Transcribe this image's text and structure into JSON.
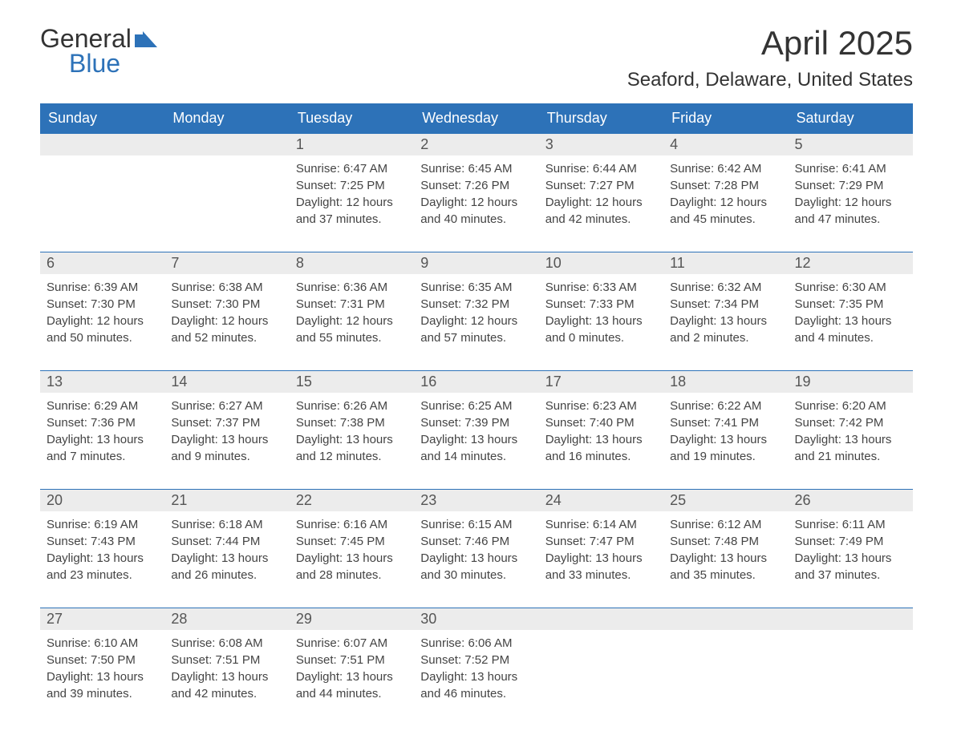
{
  "brand": {
    "line1": "General",
    "line2": "Blue",
    "icon_color": "#2d72b8"
  },
  "header": {
    "month_title": "April 2025",
    "location": "Seaford, Delaware, United States"
  },
  "colors": {
    "header_bg": "#2d72b8",
    "header_text": "#ffffff",
    "daynum_bg": "#ececec",
    "text": "#333333",
    "row_border": "#2d72b8"
  },
  "dayNames": [
    "Sunday",
    "Monday",
    "Tuesday",
    "Wednesday",
    "Thursday",
    "Friday",
    "Saturday"
  ],
  "labels": {
    "sunrise": "Sunrise:",
    "sunset": "Sunset:",
    "daylight": "Daylight:"
  },
  "weeks": [
    [
      null,
      null,
      {
        "n": "1",
        "sunrise": "6:47 AM",
        "sunset": "7:25 PM",
        "daylight": "12 hours and 37 minutes."
      },
      {
        "n": "2",
        "sunrise": "6:45 AM",
        "sunset": "7:26 PM",
        "daylight": "12 hours and 40 minutes."
      },
      {
        "n": "3",
        "sunrise": "6:44 AM",
        "sunset": "7:27 PM",
        "daylight": "12 hours and 42 minutes."
      },
      {
        "n": "4",
        "sunrise": "6:42 AM",
        "sunset": "7:28 PM",
        "daylight": "12 hours and 45 minutes."
      },
      {
        "n": "5",
        "sunrise": "6:41 AM",
        "sunset": "7:29 PM",
        "daylight": "12 hours and 47 minutes."
      }
    ],
    [
      {
        "n": "6",
        "sunrise": "6:39 AM",
        "sunset": "7:30 PM",
        "daylight": "12 hours and 50 minutes."
      },
      {
        "n": "7",
        "sunrise": "6:38 AM",
        "sunset": "7:30 PM",
        "daylight": "12 hours and 52 minutes."
      },
      {
        "n": "8",
        "sunrise": "6:36 AM",
        "sunset": "7:31 PM",
        "daylight": "12 hours and 55 minutes."
      },
      {
        "n": "9",
        "sunrise": "6:35 AM",
        "sunset": "7:32 PM",
        "daylight": "12 hours and 57 minutes."
      },
      {
        "n": "10",
        "sunrise": "6:33 AM",
        "sunset": "7:33 PM",
        "daylight": "13 hours and 0 minutes."
      },
      {
        "n": "11",
        "sunrise": "6:32 AM",
        "sunset": "7:34 PM",
        "daylight": "13 hours and 2 minutes."
      },
      {
        "n": "12",
        "sunrise": "6:30 AM",
        "sunset": "7:35 PM",
        "daylight": "13 hours and 4 minutes."
      }
    ],
    [
      {
        "n": "13",
        "sunrise": "6:29 AM",
        "sunset": "7:36 PM",
        "daylight": "13 hours and 7 minutes."
      },
      {
        "n": "14",
        "sunrise": "6:27 AM",
        "sunset": "7:37 PM",
        "daylight": "13 hours and 9 minutes."
      },
      {
        "n": "15",
        "sunrise": "6:26 AM",
        "sunset": "7:38 PM",
        "daylight": "13 hours and 12 minutes."
      },
      {
        "n": "16",
        "sunrise": "6:25 AM",
        "sunset": "7:39 PM",
        "daylight": "13 hours and 14 minutes."
      },
      {
        "n": "17",
        "sunrise": "6:23 AM",
        "sunset": "7:40 PM",
        "daylight": "13 hours and 16 minutes."
      },
      {
        "n": "18",
        "sunrise": "6:22 AM",
        "sunset": "7:41 PM",
        "daylight": "13 hours and 19 minutes."
      },
      {
        "n": "19",
        "sunrise": "6:20 AM",
        "sunset": "7:42 PM",
        "daylight": "13 hours and 21 minutes."
      }
    ],
    [
      {
        "n": "20",
        "sunrise": "6:19 AM",
        "sunset": "7:43 PM",
        "daylight": "13 hours and 23 minutes."
      },
      {
        "n": "21",
        "sunrise": "6:18 AM",
        "sunset": "7:44 PM",
        "daylight": "13 hours and 26 minutes."
      },
      {
        "n": "22",
        "sunrise": "6:16 AM",
        "sunset": "7:45 PM",
        "daylight": "13 hours and 28 minutes."
      },
      {
        "n": "23",
        "sunrise": "6:15 AM",
        "sunset": "7:46 PM",
        "daylight": "13 hours and 30 minutes."
      },
      {
        "n": "24",
        "sunrise": "6:14 AM",
        "sunset": "7:47 PM",
        "daylight": "13 hours and 33 minutes."
      },
      {
        "n": "25",
        "sunrise": "6:12 AM",
        "sunset": "7:48 PM",
        "daylight": "13 hours and 35 minutes."
      },
      {
        "n": "26",
        "sunrise": "6:11 AM",
        "sunset": "7:49 PM",
        "daylight": "13 hours and 37 minutes."
      }
    ],
    [
      {
        "n": "27",
        "sunrise": "6:10 AM",
        "sunset": "7:50 PM",
        "daylight": "13 hours and 39 minutes."
      },
      {
        "n": "28",
        "sunrise": "6:08 AM",
        "sunset": "7:51 PM",
        "daylight": "13 hours and 42 minutes."
      },
      {
        "n": "29",
        "sunrise": "6:07 AM",
        "sunset": "7:51 PM",
        "daylight": "13 hours and 44 minutes."
      },
      {
        "n": "30",
        "sunrise": "6:06 AM",
        "sunset": "7:52 PM",
        "daylight": "13 hours and 46 minutes."
      },
      null,
      null,
      null
    ]
  ]
}
